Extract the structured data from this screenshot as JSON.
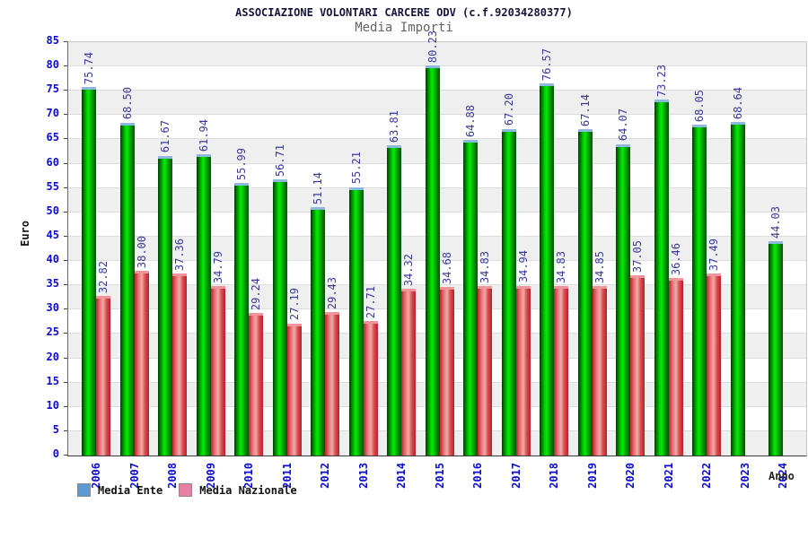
{
  "header": {
    "title": "ASSOCIAZIONE VOLONTARI CARCERE ODV (c.f.92034280377)",
    "subtitle": "Media Importi"
  },
  "axes": {
    "y_title": "Euro",
    "x_title": "Anno",
    "y_min": 0,
    "y_max": 85,
    "y_step": 5
  },
  "legend": {
    "items": [
      {
        "label": "Media Ente",
        "color": "#5b9bd5"
      },
      {
        "label": "Media Nazionale",
        "color": "#e87fa5"
      }
    ]
  },
  "colors": {
    "tick_label": "#0b0bd0",
    "value_label": "#3a3a9e",
    "band_gray": "#efefef",
    "grid_line": "#dcdcdc",
    "tick_mark": "#444444",
    "bar_green_gradient": [
      "#003c00",
      "#00cc00",
      "#00ee00",
      "#00a800",
      "#005200"
    ],
    "bar_green_cap": "#8fb8df",
    "bar_red_gradient": [
      "#c12030",
      "#ea7c7c",
      "#f2aaaa",
      "#d94f4f",
      "#bb1e2e"
    ],
    "bar_red_cap": "#f0949c"
  },
  "chart_data": {
    "type": "bar",
    "title": "Media Importi",
    "xlabel": "Anno",
    "ylabel": "Euro",
    "ylim": [
      0,
      85
    ],
    "ytick_step": 5,
    "grid": "horizontal-bands",
    "legend_position": "bottom-left",
    "categories": [
      2006,
      2007,
      2008,
      2009,
      2010,
      2011,
      2012,
      2013,
      2014,
      2015,
      2016,
      2017,
      2018,
      2019,
      2020,
      2021,
      2022,
      2023,
      2024
    ],
    "series": [
      {
        "name": "Media Ente",
        "values": [
          75.74,
          68.5,
          61.67,
          61.94,
          55.99,
          56.71,
          51.14,
          55.21,
          63.81,
          80.23,
          64.88,
          67.2,
          76.57,
          67.14,
          64.07,
          73.23,
          68.05,
          68.64,
          44.03
        ]
      },
      {
        "name": "Media Nazionale",
        "values": [
          32.82,
          38.0,
          37.36,
          34.79,
          29.24,
          27.19,
          29.43,
          27.71,
          34.32,
          34.68,
          34.83,
          34.94,
          34.83,
          34.85,
          37.05,
          36.46,
          37.49,
          null,
          null
        ]
      }
    ]
  }
}
